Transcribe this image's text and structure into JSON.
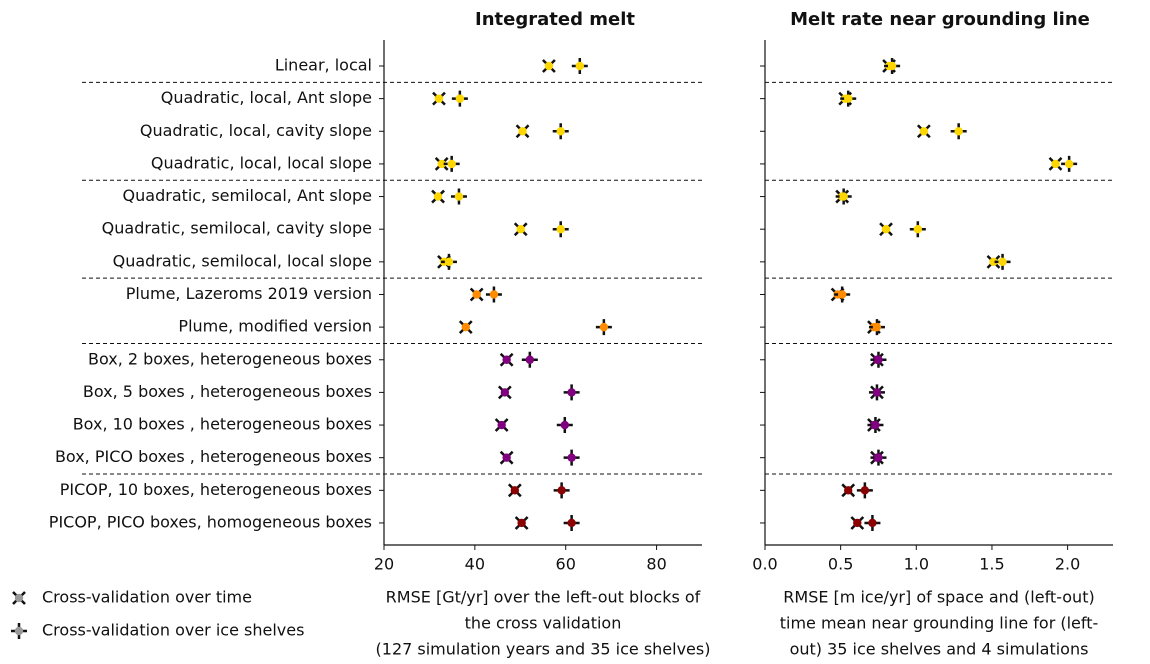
{
  "chart_data": [
    {
      "type": "dotplot",
      "title": "Integrated melt",
      "categories": [
        "Linear, local",
        "Quadratic, local, Ant slope",
        "Quadratic, local, cavity slope",
        "Quadratic, local, local slope",
        "Quadratic, semilocal, Ant slope",
        "Quadratic, semilocal, cavity slope",
        "Quadratic, semilocal, local slope",
        "Plume, Lazeroms 2019 version",
        "Plume, modified version",
        "Box, 2 boxes, heterogeneous boxes",
        "Box, 5 boxes , heterogeneous boxes",
        "Box, 10 boxes , heterogeneous boxes",
        "Box, PICO boxes , heterogeneous boxes",
        "PICOP, 10 boxes, heterogeneous boxes",
        "PICOP, PICO boxes, homogeneous boxes"
      ],
      "colors": [
        "#ffd700",
        "#ffd700",
        "#ffd700",
        "#ffd700",
        "#ffd700",
        "#ffd700",
        "#ffd700",
        "#ff8c00",
        "#ff8c00",
        "#800080",
        "#800080",
        "#800080",
        "#800080",
        "#8b0000",
        "#8b0000"
      ],
      "series": [
        {
          "name": "Cross-validation over time",
          "marker": "x",
          "values": [
            56.3,
            32.1,
            50.5,
            32.7,
            31.9,
            50.1,
            33.2,
            40.4,
            38.0,
            47.0,
            46.6,
            45.9,
            47.0,
            48.8,
            50.3
          ]
        },
        {
          "name": "Cross-validation over ice shelves",
          "marker": "+",
          "values": [
            63.1,
            36.7,
            58.9,
            34.9,
            36.5,
            58.9,
            34.3,
            44.2,
            68.4,
            52.1,
            61.3,
            59.8,
            61.3,
            59.1,
            61.3
          ]
        }
      ],
      "xlim": [
        20,
        90
      ],
      "xticks": [
        20,
        40,
        60,
        80
      ],
      "xlabel": [
        "RMSE [Gt/yr] over the left-out blocks of",
        "the cross validation",
        "(127 simulation years and 35 ice shelves)"
      ]
    },
    {
      "type": "dotplot",
      "title": "Melt rate near grounding line",
      "colors": [
        "#ffd700",
        "#ffd700",
        "#ffd700",
        "#ffd700",
        "#ffd700",
        "#ffd700",
        "#ffd700",
        "#ff8c00",
        "#ff8c00",
        "#800080",
        "#800080",
        "#800080",
        "#800080",
        "#8b0000",
        "#8b0000"
      ],
      "series": [
        {
          "marker": "x",
          "values": [
            0.82,
            0.53,
            1.05,
            1.92,
            0.51,
            0.8,
            1.51,
            0.48,
            0.72,
            0.74,
            0.74,
            0.72,
            0.74,
            0.55,
            0.61
          ]
        },
        {
          "marker": "+",
          "values": [
            0.84,
            0.55,
            1.28,
            2.01,
            0.52,
            1.01,
            1.57,
            0.51,
            0.74,
            0.75,
            0.74,
            0.73,
            0.75,
            0.66,
            0.71
          ]
        }
      ],
      "xlim": [
        0,
        2.3
      ],
      "xticks": [
        {
          "value": 0,
          "label": "0.0"
        },
        0.5,
        {
          "value": 1,
          "label": "1.0"
        },
        1.5,
        {
          "value": 2,
          "label": "2.0"
        }
      ],
      "xlabel": [
        "RMSE [m ice/yr] of space and (left-out)",
        "time mean near grounding line for (left-",
        "out) 35 ice shelves and 4 simulations"
      ]
    }
  ]
}
